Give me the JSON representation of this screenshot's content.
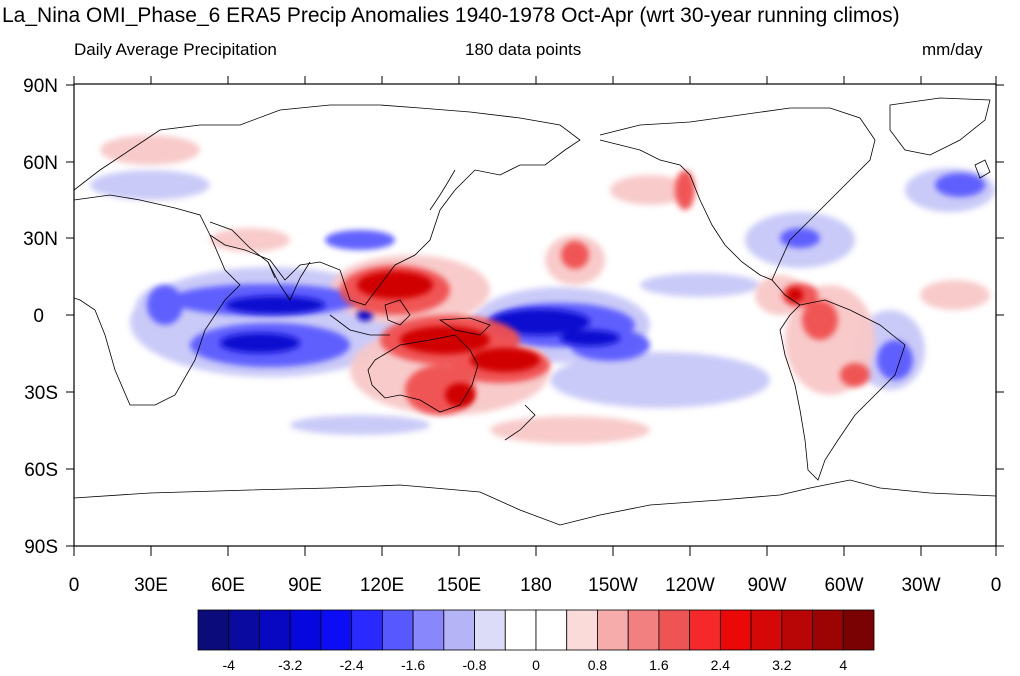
{
  "title": "La_Nina OMI_Phase_6 ERA5 Precip Anomalies 1940-1978 Oct-Apr (wrt 30-year running climos)",
  "subtitle_left": "Daily Average Precipitation",
  "subtitle_center": "180 data points",
  "subtitle_right": "mm/day",
  "y_ticks": [
    "90N",
    "60N",
    "30N",
    "0",
    "30S",
    "60S",
    "90S"
  ],
  "x_ticks": [
    "0",
    "30E",
    "60E",
    "90E",
    "120E",
    "150E",
    "180",
    "150W",
    "120W",
    "90W",
    "60W",
    "30W",
    "0"
  ],
  "colorbar": {
    "colors": [
      "#0b0b7a",
      "#0a0aa0",
      "#0808c2",
      "#0606de",
      "#0d0df5",
      "#2a2aff",
      "#5858ff",
      "#8888fc",
      "#b4b4f6",
      "#dcdcf9",
      "#ffffff",
      "#ffffff",
      "#fbdada",
      "#f7acac",
      "#f38080",
      "#ef5454",
      "#f52929",
      "#ea0808",
      "#d50707",
      "#b80606",
      "#9c0404",
      "#7a0202"
    ],
    "labels": [
      "-4",
      "-3.2",
      "-2.4",
      "-1.6",
      "-0.8",
      "0",
      "0.8",
      "1.6",
      "2.4",
      "3.2",
      "4"
    ]
  },
  "colors": {
    "neg_strong": "#0a0ad0",
    "neg_mid": "#5a5aff",
    "neg_light": "#c8c8f8",
    "pos_light": "#f8c8c8",
    "pos_mid": "#f05050",
    "pos_strong": "#d00606"
  }
}
